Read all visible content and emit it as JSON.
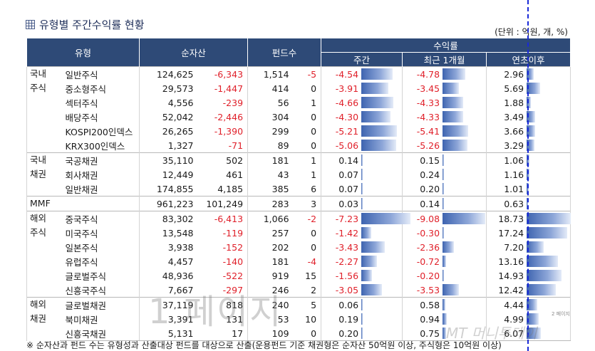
{
  "title": "유형별 주간수익률 현황",
  "unit": "(단위 : 억원, 개, %)",
  "headers": {
    "type": "유형",
    "assets": "순자산",
    "funds": "펀드수",
    "returns": "수익률",
    "weekly": "주간",
    "month": "최근 1개월",
    "ytd": "연초이후"
  },
  "groups": [
    {
      "label": "국내\n주식",
      "rows": [
        {
          "name": "일반주식",
          "assets": "124,625",
          "assets_chg": "-6,343",
          "funds": "1,514",
          "funds_chg": "-5",
          "w": "-4.54",
          "w_v": -4.54,
          "m": "-4.78",
          "m_v": -4.78,
          "y": "2.96",
          "y_v": 2.96
        },
        {
          "name": "중소형주식",
          "assets": "29,573",
          "assets_chg": "-1,447",
          "funds": "414",
          "funds_chg": "0",
          "w": "-3.91",
          "w_v": -3.91,
          "m": "-3.45",
          "m_v": -3.45,
          "y": "5.69",
          "y_v": 5.69
        },
        {
          "name": "섹터주식",
          "assets": "4,556",
          "assets_chg": "-239",
          "funds": "56",
          "funds_chg": "1",
          "w": "-4.66",
          "w_v": -4.66,
          "m": "-4.33",
          "m_v": -4.33,
          "y": "1.88",
          "y_v": 1.88
        },
        {
          "name": "배당주식",
          "assets": "52,042",
          "assets_chg": "-2,446",
          "funds": "304",
          "funds_chg": "0",
          "w": "-4.30",
          "w_v": -4.3,
          "m": "-4.33",
          "m_v": -4.33,
          "y": "3.49",
          "y_v": 3.49
        },
        {
          "name": "KOSPI200인덱스",
          "assets": "26,265",
          "assets_chg": "-1,390",
          "funds": "299",
          "funds_chg": "0",
          "w": "-5.21",
          "w_v": -5.21,
          "m": "-5.41",
          "m_v": -5.41,
          "y": "3.66",
          "y_v": 3.66
        },
        {
          "name": "KRX300인덱스",
          "assets": "1,327",
          "assets_chg": "-71",
          "funds": "89",
          "funds_chg": "0",
          "w": "-5.06",
          "w_v": -5.06,
          "m": "-5.26",
          "m_v": -5.26,
          "y": "3.29",
          "y_v": 3.29
        }
      ]
    },
    {
      "label": "국내\n채권",
      "rows": [
        {
          "name": "국공채권",
          "assets": "35,110",
          "assets_chg": "502",
          "funds": "181",
          "funds_chg": "1",
          "w": "0.14",
          "w_v": 0.14,
          "m": "0.15",
          "m_v": 0.15,
          "y": "1.06",
          "y_v": 1.06
        },
        {
          "name": "회사채권",
          "assets": "12,449",
          "assets_chg": "461",
          "funds": "43",
          "funds_chg": "1",
          "w": "0.07",
          "w_v": 0.07,
          "m": "0.24",
          "m_v": 0.24,
          "y": "1.16",
          "y_v": 1.16
        },
        {
          "name": "일반채권",
          "assets": "174,855",
          "assets_chg": "4,185",
          "funds": "385",
          "funds_chg": "6",
          "w": "0.07",
          "w_v": 0.07,
          "m": "0.20",
          "m_v": 0.2,
          "y": "1.01",
          "y_v": 1.01
        }
      ]
    },
    {
      "label": "MMF",
      "rows": [
        {
          "name": "",
          "assets": "961,223",
          "assets_chg": "101,249",
          "funds": "283",
          "funds_chg": "3",
          "w": "0.03",
          "w_v": 0.03,
          "m": "0.14",
          "m_v": 0.14,
          "y": "0.63",
          "y_v": 0.63
        }
      ]
    },
    {
      "label": "해외\n주식",
      "rows": [
        {
          "name": "중국주식",
          "assets": "83,302",
          "assets_chg": "-6,413",
          "funds": "1,066",
          "funds_chg": "-2",
          "w": "-7.23",
          "w_v": -7.23,
          "m": "-9.08",
          "m_v": -9.08,
          "y": "18.73",
          "y_v": 18.73
        },
        {
          "name": "미국주식",
          "assets": "13,548",
          "assets_chg": "-119",
          "funds": "257",
          "funds_chg": "0",
          "w": "-1.42",
          "w_v": -1.42,
          "m": "-0.30",
          "m_v": -0.3,
          "y": "17.24",
          "y_v": 17.24
        },
        {
          "name": "일본주식",
          "assets": "3,938",
          "assets_chg": "-152",
          "funds": "202",
          "funds_chg": "0",
          "w": "-3.43",
          "w_v": -3.43,
          "m": "-2.36",
          "m_v": -2.36,
          "y": "7.20",
          "y_v": 7.2
        },
        {
          "name": "유럽주식",
          "assets": "4,457",
          "assets_chg": "-140",
          "funds": "181",
          "funds_chg": "-4",
          "w": "-2.27",
          "w_v": -2.27,
          "m": "-0.72",
          "m_v": -0.72,
          "y": "13.16",
          "y_v": 13.16
        },
        {
          "name": "글로벌주식",
          "assets": "48,936",
          "assets_chg": "-522",
          "funds": "919",
          "funds_chg": "15",
          "w": "-1.56",
          "w_v": -1.56,
          "m": "-0.20",
          "m_v": -0.2,
          "y": "14.93",
          "y_v": 14.93
        },
        {
          "name": "신흥국주식",
          "assets": "7,667",
          "assets_chg": "-297",
          "funds": "246",
          "funds_chg": "2",
          "w": "-3.05",
          "w_v": -3.05,
          "m": "-3.53",
          "m_v": -3.53,
          "y": "12.42",
          "y_v": 12.42
        }
      ]
    },
    {
      "label": "해외\n채권",
      "rows": [
        {
          "name": "글로벌채권",
          "assets": "37,119",
          "assets_chg": "818",
          "funds": "240",
          "funds_chg": "5",
          "w": "0.06",
          "w_v": 0.06,
          "m": "0.58",
          "m_v": 0.58,
          "y": "4.44",
          "y_v": 4.44
        },
        {
          "name": "북미채권",
          "assets": "3,391",
          "assets_chg": "131",
          "funds": "53",
          "funds_chg": "10",
          "w": "0.19",
          "w_v": 0.19,
          "m": "0.94",
          "m_v": 0.94,
          "y": "4.99",
          "y_v": 4.99
        },
        {
          "name": "신흥국채권",
          "assets": "5,131",
          "assets_chg": "17",
          "funds": "109",
          "funds_chg": "0",
          "w": "0.20",
          "w_v": 0.2,
          "m": "0.75",
          "m_v": 0.75,
          "y": "6.07",
          "y_v": 6.07
        }
      ]
    }
  ],
  "footnote": "※ 순자산과 펀드 수는 유형성과 산출대상 펀드를 대상으로 산출(운용펀드 기준 채권형은 순자산 50억원 이상, 주식형은 10억원 이상)",
  "watermark": "1 페이지",
  "page_label": "2 페이지",
  "brand": "MT 머니투데이",
  "colors": {
    "header": "#2e4a77",
    "negative": "#e0202a",
    "bar": "#3e64b0"
  }
}
